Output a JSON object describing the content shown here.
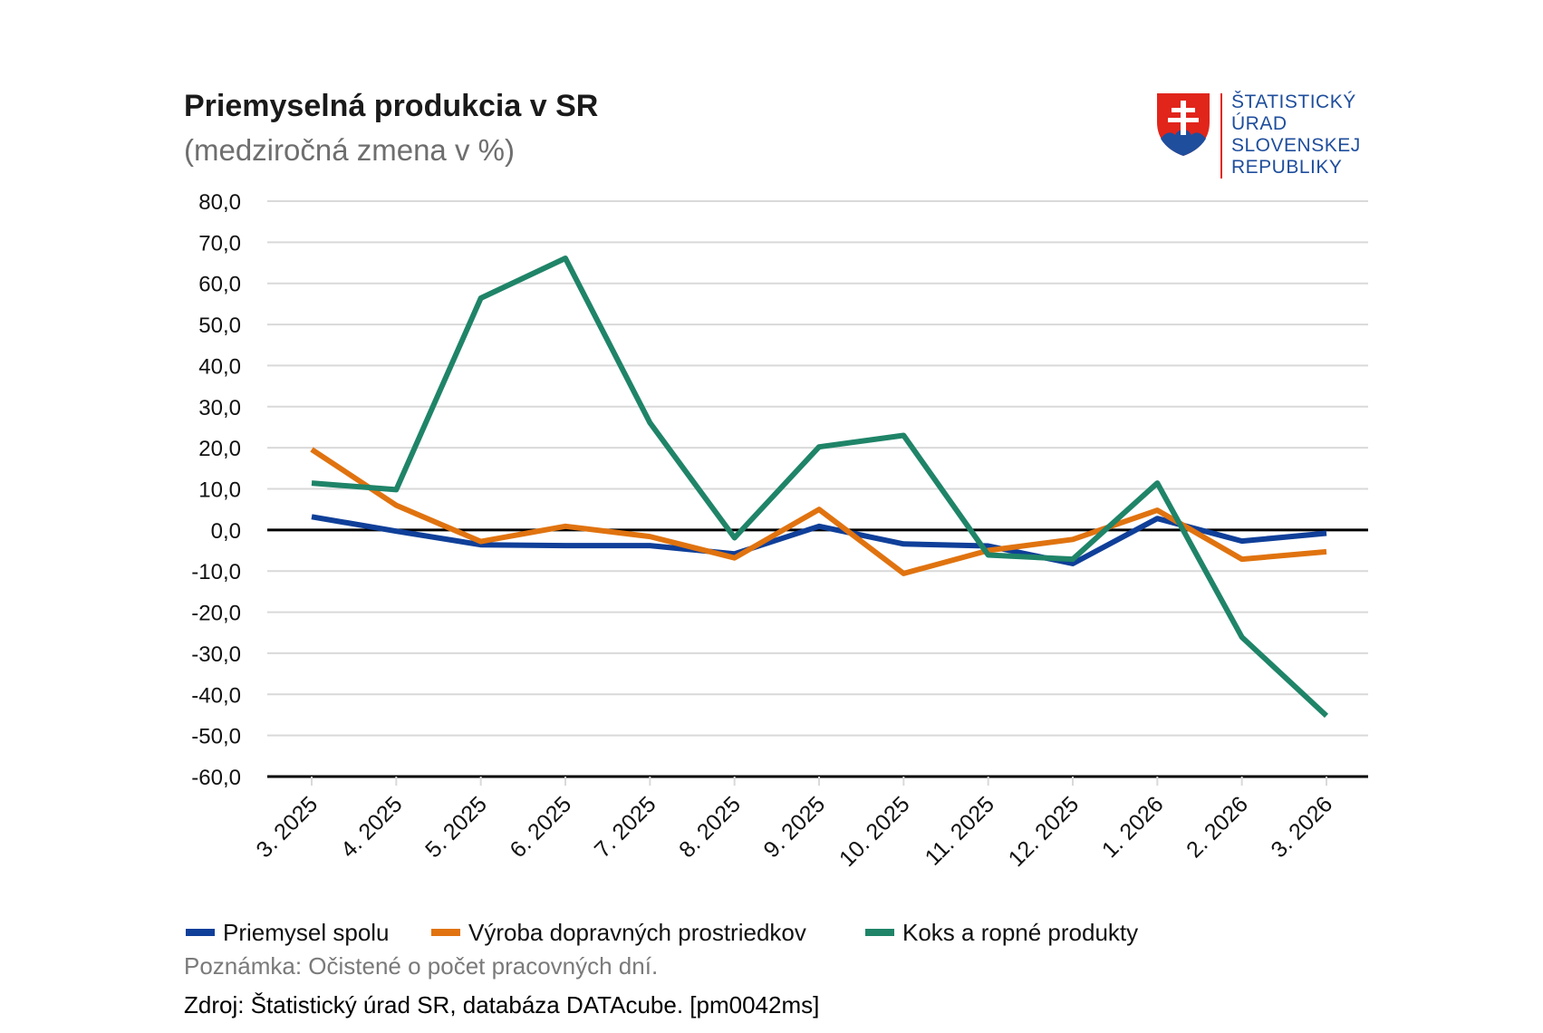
{
  "chart_data": {
    "type": "line",
    "title": "Priemyselná produkcia v SR",
    "subtitle": "(medziročná zmena v %)",
    "categories": [
      "3. 2025",
      "4. 2025",
      "5. 2025",
      "6. 2025",
      "7. 2025",
      "8. 2025",
      "9. 2025",
      "10. 2025",
      "11. 2025",
      "12. 2025",
      "1. 2026",
      "2. 2026",
      "3. 2026"
    ],
    "ylim": [
      -60,
      80
    ],
    "yticks": [
      80,
      70,
      60,
      50,
      40,
      30,
      20,
      10,
      0,
      -10,
      -20,
      -30,
      -40,
      -50,
      -60
    ],
    "ytick_labels": [
      "80,0",
      "70,0",
      "60,0",
      "50,0",
      "40,0",
      "30,0",
      "20,0",
      "10,0",
      "0,0",
      "-10,0",
      "-20,0",
      "-30,0",
      "-40,0",
      "-50,0",
      "-60,0"
    ],
    "grid": true,
    "legend_position": "bottom-left",
    "series": [
      {
        "name": "Priemysel spolu",
        "color": "#0f3f99",
        "values": [
          3.2,
          -0.3,
          -3.6,
          -3.8,
          -3.8,
          -5.8,
          0.9,
          -3.4,
          -3.9,
          -8.2,
          2.8,
          -2.7,
          -0.8
        ]
      },
      {
        "name": "Výroba dopravných prostriedkov",
        "color": "#e0730f",
        "values": [
          19.6,
          6.0,
          -2.8,
          0.9,
          -1.6,
          -6.8,
          5.0,
          -10.6,
          -5.0,
          -2.3,
          4.8,
          -7.1,
          -5.3
        ]
      },
      {
        "name": "Koks a ropné produkty",
        "color": "#1f8468",
        "values": [
          11.4,
          9.8,
          56.4,
          66.1,
          26.1,
          -1.9,
          20.2,
          23.0,
          -6.1,
          -7.1,
          11.4,
          -26.1,
          -45.2
        ]
      }
    ]
  },
  "note": "Poznámka: Očistené o počet pracovných dní.",
  "source": "Zdroj: Štatistický úrad SR, databáza DATAcube. [pm0042ms]",
  "logo": {
    "lines": [
      "ŠTATISTICKÝ",
      "ÚRAD",
      "SLOVENSKEJ",
      "REPUBLIKY"
    ],
    "text_color": "#1f4e9c",
    "divider_color": "#e1251b",
    "shield_red": "#e1251b",
    "shield_blue": "#1f4e9c"
  },
  "colors": {
    "grid": "#d9d9d9",
    "axis": "#000000"
  }
}
